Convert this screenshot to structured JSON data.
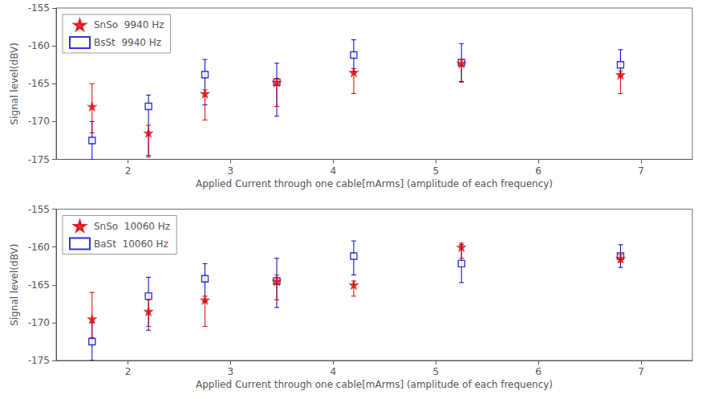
{
  "chart_data": [
    {
      "type": "scatter",
      "xlabel": "Applied Current through one cable[mArms] (amplitude of each frequency)",
      "ylabel": "Signal level(dBV)",
      "xlim": [
        1.3,
        7.5
      ],
      "xticks": [
        2,
        3,
        4,
        5,
        6,
        7
      ],
      "ylim": [
        -175,
        -155
      ],
      "yticks": [
        -175,
        -170,
        -165,
        -160,
        -155
      ],
      "grid": false,
      "legend": "upper left",
      "series": [
        {
          "name": "SnSo  9940 Hz",
          "color": "#dd0000",
          "marker": "star",
          "x": [
            1.65,
            2.2,
            2.75,
            3.45,
            4.2,
            5.25,
            6.8
          ],
          "values": [
            -168.0,
            -171.5,
            -166.3,
            -164.8,
            -163.5,
            -162.3,
            -163.8
          ],
          "yerr_lo": [
            3.5,
            3.2,
            3.5,
            3.2,
            2.8,
            2.5,
            2.5
          ],
          "yerr_hi": [
            3.0,
            1.0,
            0.5,
            0.5,
            0.5,
            0.5,
            0.5
          ]
        },
        {
          "name": "BsSt  9940 Hz",
          "color": "#0000cc",
          "marker": "square",
          "x": [
            1.65,
            2.2,
            2.75,
            3.45,
            4.2,
            5.25,
            6.8
          ],
          "values": [
            -172.5,
            -168.0,
            -163.8,
            -164.8,
            -161.2,
            -162.2,
            -162.5
          ],
          "yerr_lo": [
            2.5,
            6.5,
            4.0,
            4.5,
            2.2,
            2.5,
            1.5
          ],
          "yerr_hi": [
            2.5,
            1.5,
            2.0,
            2.5,
            2.0,
            2.5,
            2.0
          ]
        }
      ]
    },
    {
      "type": "scatter",
      "xlabel": "Applied Current through one cable[mArms] (amplitude of each frequency)",
      "ylabel": "Signal level(dBV)",
      "xlim": [
        1.3,
        7.5
      ],
      "xticks": [
        2,
        3,
        4,
        5,
        6,
        7
      ],
      "ylim": [
        -175,
        -155
      ],
      "yticks": [
        -175,
        -170,
        -165,
        -160,
        -155
      ],
      "grid": false,
      "legend": "upper left",
      "series": [
        {
          "name": "SnSo  10060 Hz",
          "color": "#dd0000",
          "marker": "star",
          "x": [
            1.65,
            2.2,
            2.75,
            3.45,
            4.2,
            5.25,
            6.8
          ],
          "values": [
            -169.5,
            -168.5,
            -167.0,
            -164.5,
            -165.0,
            -160.0,
            -161.5
          ],
          "yerr_lo": [
            2.5,
            2.0,
            3.5,
            2.5,
            1.5,
            1.5,
            0.5
          ],
          "yerr_hi": [
            3.5,
            1.5,
            0.5,
            0.8,
            0.5,
            0.5,
            0.5
          ]
        },
        {
          "name": "BaSt  10060 Hz",
          "color": "#0000cc",
          "marker": "square",
          "x": [
            1.65,
            2.2,
            2.75,
            3.45,
            4.2,
            5.25,
            6.8
          ],
          "values": [
            -172.5,
            -166.5,
            -164.2,
            -164.5,
            -161.2,
            -162.2,
            -161.2
          ],
          "yerr_lo": [
            2.5,
            4.5,
            3.0,
            3.5,
            2.5,
            2.5,
            1.5
          ],
          "yerr_hi": [
            2.5,
            2.5,
            2.0,
            3.0,
            2.0,
            2.5,
            1.5
          ]
        }
      ]
    }
  ]
}
